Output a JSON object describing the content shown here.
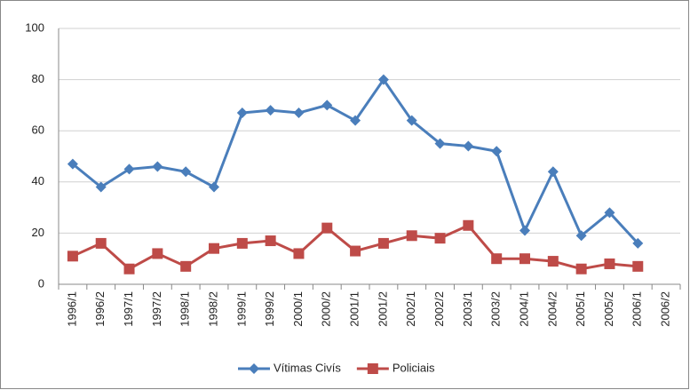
{
  "chart_data": {
    "type": "line",
    "categories": [
      "1996/1",
      "1996/2",
      "1997/1",
      "1997/2",
      "1998/1",
      "1998/2",
      "1999/1",
      "1999/2",
      "2000/1",
      "2000/2",
      "2001/1",
      "2001/2",
      "2002/1",
      "2002/2",
      "2003/1",
      "2003/2",
      "2004/1",
      "2004/2",
      "2005/1",
      "2005/2",
      "2006/1",
      "2006/2"
    ],
    "series": [
      {
        "name": "Vítimas Civís",
        "color": "#4a7ebb",
        "marker": "diamond",
        "values": [
          47,
          38,
          45,
          46,
          44,
          38,
          67,
          68,
          67,
          70,
          64,
          80,
          64,
          55,
          54,
          52,
          21,
          44,
          19,
          28,
          16,
          null
        ]
      },
      {
        "name": "Policiais",
        "color": "#be4b48",
        "marker": "square",
        "values": [
          11,
          16,
          6,
          12,
          7,
          14,
          16,
          17,
          12,
          22,
          13,
          16,
          19,
          18,
          23,
          10,
          10,
          9,
          6,
          8,
          7,
          null
        ]
      }
    ],
    "ylim": [
      0,
      100
    ],
    "yticks": [
      0,
      20,
      40,
      60,
      80,
      100
    ],
    "grid": true,
    "legend": "bottom"
  }
}
